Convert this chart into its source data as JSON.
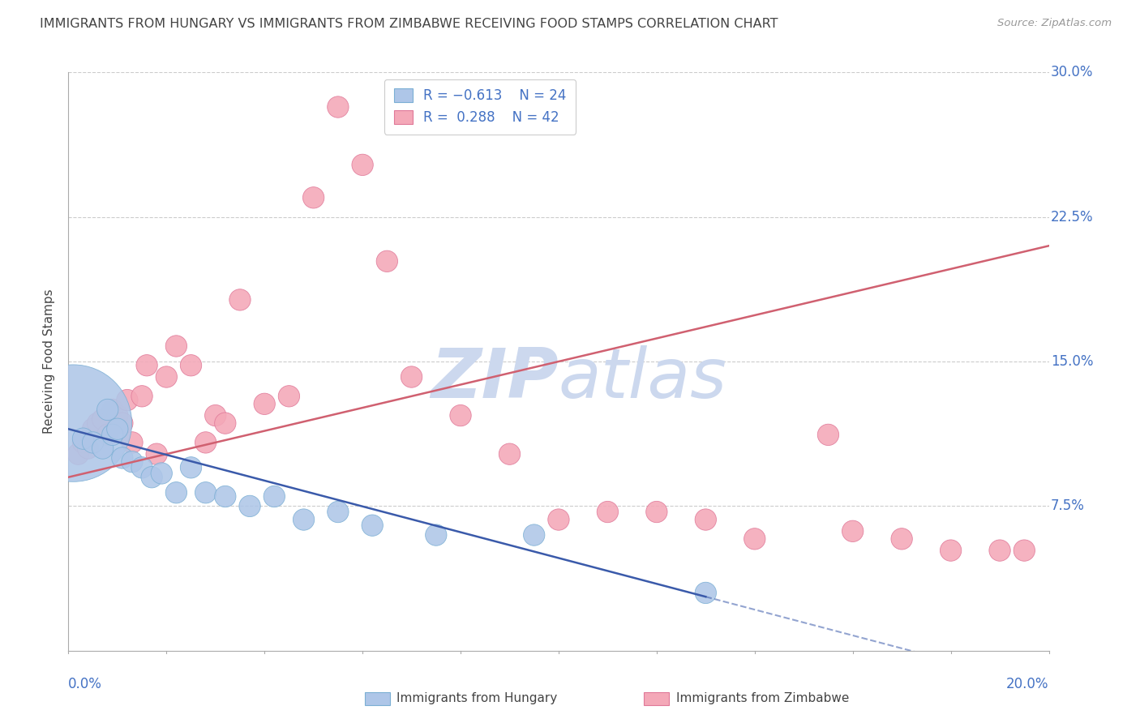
{
  "title": "IMMIGRANTS FROM HUNGARY VS IMMIGRANTS FROM ZIMBABWE RECEIVING FOOD STAMPS CORRELATION CHART",
  "source": "Source: ZipAtlas.com",
  "ylabel": "Receiving Food Stamps",
  "yticks": [
    0.0,
    0.075,
    0.15,
    0.225,
    0.3
  ],
  "xlim": [
    0.0,
    0.2
  ],
  "ylim": [
    0.0,
    0.3
  ],
  "hungary_color": "#aec6e8",
  "hungary_edge": "#7bafd4",
  "zimbabwe_color": "#f4a8b8",
  "zimbabwe_edge": "#e07898",
  "trendline_hungary_color": "#3a5aaa",
  "trendline_zimbabwe_color": "#d06070",
  "watermark_color": "#ccd8ee",
  "legend_R_hungary": "R = −0.613",
  "legend_N_hungary": "N = 24",
  "legend_R_zimbabwe": "R =  0.288",
  "legend_N_zimbabwe": "N = 42",
  "hungary_x": [
    0.001,
    0.003,
    0.005,
    0.007,
    0.008,
    0.009,
    0.01,
    0.011,
    0.013,
    0.015,
    0.017,
    0.019,
    0.022,
    0.025,
    0.028,
    0.032,
    0.037,
    0.042,
    0.048,
    0.055,
    0.062,
    0.075,
    0.095,
    0.13
  ],
  "hungary_y": [
    0.118,
    0.11,
    0.108,
    0.105,
    0.125,
    0.112,
    0.115,
    0.1,
    0.098,
    0.095,
    0.09,
    0.092,
    0.082,
    0.095,
    0.082,
    0.08,
    0.075,
    0.08,
    0.068,
    0.072,
    0.065,
    0.06,
    0.06,
    0.03
  ],
  "hungary_sizes": [
    20,
    20,
    20,
    20,
    20,
    20,
    20,
    20,
    20,
    20,
    20,
    20,
    20,
    20,
    20,
    20,
    20,
    20,
    20,
    20,
    20,
    20,
    20,
    20
  ],
  "hungary_big_idx": 0,
  "hungary_big_size": 600,
  "zimbabwe_x": [
    0.002,
    0.003,
    0.004,
    0.005,
    0.006,
    0.007,
    0.008,
    0.009,
    0.01,
    0.011,
    0.012,
    0.013,
    0.015,
    0.016,
    0.018,
    0.02,
    0.022,
    0.025,
    0.028,
    0.03,
    0.032,
    0.035,
    0.04,
    0.045,
    0.05,
    0.055,
    0.06,
    0.065,
    0.07,
    0.08,
    0.09,
    0.1,
    0.11,
    0.12,
    0.13,
    0.14,
    0.155,
    0.16,
    0.17,
    0.18,
    0.19,
    0.195
  ],
  "zimbabwe_y": [
    0.102,
    0.108,
    0.105,
    0.115,
    0.118,
    0.12,
    0.112,
    0.125,
    0.122,
    0.118,
    0.13,
    0.108,
    0.132,
    0.148,
    0.102,
    0.142,
    0.158,
    0.148,
    0.108,
    0.122,
    0.118,
    0.182,
    0.128,
    0.132,
    0.235,
    0.282,
    0.252,
    0.202,
    0.142,
    0.122,
    0.102,
    0.068,
    0.072,
    0.072,
    0.068,
    0.058,
    0.112,
    0.062,
    0.058,
    0.052,
    0.052,
    0.052
  ],
  "zimbabwe_sizes": [
    20,
    20,
    20,
    20,
    20,
    20,
    20,
    20,
    20,
    20,
    20,
    20,
    20,
    20,
    20,
    20,
    20,
    20,
    20,
    20,
    20,
    20,
    20,
    20,
    20,
    20,
    20,
    20,
    20,
    20,
    20,
    20,
    20,
    20,
    20,
    20,
    20,
    20,
    20,
    20,
    20,
    20
  ],
  "background_color": "#ffffff",
  "grid_color": "#cccccc",
  "axis_color": "#aaaaaa",
  "label_color": "#4472c4",
  "text_color": "#444444"
}
